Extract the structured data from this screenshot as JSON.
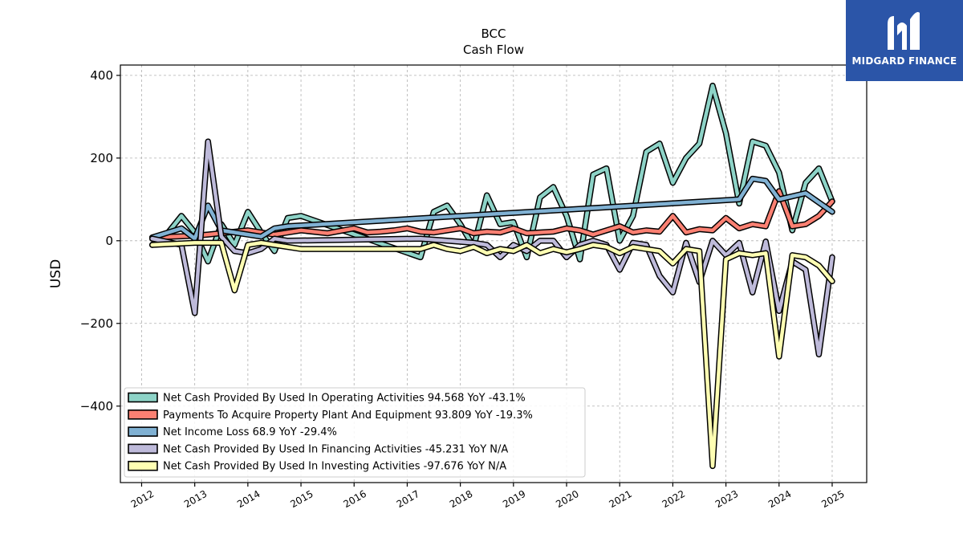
{
  "brand": {
    "name": "MIDGARD FINANCE",
    "color": "#2b55a8"
  },
  "chart_data": {
    "type": "line",
    "title": "BCC",
    "subtitle": "Cash Flow",
    "xlabel": "",
    "ylabel": "USD",
    "xlim": [
      2011.6,
      2025.65
    ],
    "ylim": [
      -585,
      425
    ],
    "yticks": [
      400,
      200,
      0,
      -200,
      -400
    ],
    "ytick_labels": [
      "400",
      "200",
      "0",
      "−200",
      "−400"
    ],
    "xticks": [
      2012,
      2013,
      2014,
      2015,
      2016,
      2017,
      2018,
      2019,
      2020,
      2021,
      2022,
      2023,
      2024,
      2025
    ],
    "xtick_labels": [
      "2012",
      "2013",
      "2014",
      "2015",
      "2016",
      "2017",
      "2018",
      "2019",
      "2020",
      "2021",
      "2022",
      "2023",
      "2024",
      "2025"
    ],
    "grid": true,
    "legend_position": "lower-left",
    "series": [
      {
        "name": "Net Cash Provided By Used In Operating Activities",
        "legend": "Net Cash Provided By Used In Operating Activities  94.568 YoY -43.1%",
        "color": "#8dd3c7",
        "points": [
          [
            2012.2,
            -10
          ],
          [
            2012.5,
            20
          ],
          [
            2012.75,
            60
          ],
          [
            2013.0,
            20
          ],
          [
            2013.25,
            -50
          ],
          [
            2013.5,
            40
          ],
          [
            2013.75,
            -10
          ],
          [
            2014.0,
            70
          ],
          [
            2014.25,
            20
          ],
          [
            2014.5,
            -25
          ],
          [
            2014.75,
            55
          ],
          [
            2015.0,
            60
          ],
          [
            2017.25,
            -40
          ],
          [
            2017.5,
            70
          ],
          [
            2017.75,
            85
          ],
          [
            2018.0,
            40
          ],
          [
            2018.25,
            -15
          ],
          [
            2018.5,
            110
          ],
          [
            2018.75,
            40
          ],
          [
            2019.0,
            45
          ],
          [
            2019.25,
            -40
          ],
          [
            2019.5,
            105
          ],
          [
            2019.75,
            130
          ],
          [
            2020.0,
            60
          ],
          [
            2020.25,
            -45
          ],
          [
            2020.5,
            160
          ],
          [
            2020.75,
            175
          ],
          [
            2021.0,
            0
          ],
          [
            2021.25,
            60
          ],
          [
            2021.5,
            215
          ],
          [
            2021.75,
            235
          ],
          [
            2022.0,
            140
          ],
          [
            2022.25,
            200
          ],
          [
            2022.5,
            235
          ],
          [
            2022.75,
            375
          ],
          [
            2023.0,
            260
          ],
          [
            2023.25,
            90
          ],
          [
            2023.5,
            240
          ],
          [
            2023.75,
            230
          ],
          [
            2024.0,
            165
          ],
          [
            2024.25,
            25
          ],
          [
            2024.5,
            140
          ],
          [
            2024.75,
            175
          ],
          [
            2025.0,
            95
          ]
        ]
      },
      {
        "name": "Payments To Acquire Property Plant And Equipment",
        "legend": "Payments To Acquire Property Plant And Equipment  93.809 YoY -19.3%",
        "color": "#fb8072",
        "points": [
          [
            2012.2,
            8
          ],
          [
            2013.0,
            12
          ],
          [
            2013.25,
            15
          ],
          [
            2014.0,
            25
          ],
          [
            2014.5,
            15
          ],
          [
            2015.0,
            25
          ],
          [
            2015.5,
            18
          ],
          [
            2016.0,
            30
          ],
          [
            2016.25,
            20
          ],
          [
            2016.5,
            22
          ],
          [
            2016.75,
            25
          ],
          [
            2017.0,
            30
          ],
          [
            2017.25,
            22
          ],
          [
            2017.5,
            20
          ],
          [
            2017.75,
            25
          ],
          [
            2018.0,
            30
          ],
          [
            2018.25,
            18
          ],
          [
            2018.5,
            22
          ],
          [
            2018.75,
            20
          ],
          [
            2019.0,
            30
          ],
          [
            2019.25,
            18
          ],
          [
            2019.5,
            20
          ],
          [
            2019.75,
            22
          ],
          [
            2020.0,
            30
          ],
          [
            2020.25,
            25
          ],
          [
            2020.5,
            15
          ],
          [
            2020.75,
            25
          ],
          [
            2021.0,
            35
          ],
          [
            2021.25,
            20
          ],
          [
            2021.5,
            25
          ],
          [
            2021.75,
            22
          ],
          [
            2022.0,
            60
          ],
          [
            2022.25,
            20
          ],
          [
            2022.5,
            28
          ],
          [
            2022.75,
            25
          ],
          [
            2023.0,
            55
          ],
          [
            2023.25,
            30
          ],
          [
            2023.5,
            40
          ],
          [
            2023.75,
            35
          ],
          [
            2024.0,
            120
          ],
          [
            2024.25,
            35
          ],
          [
            2024.5,
            40
          ],
          [
            2024.75,
            60
          ],
          [
            2025.0,
            95
          ]
        ]
      },
      {
        "name": "Net Income Loss",
        "legend": "Net Income Loss  68.9 YoY -29.4%",
        "color": "#80b1d3",
        "points": [
          [
            2012.2,
            8
          ],
          [
            2012.75,
            30
          ],
          [
            2013.0,
            5
          ],
          [
            2013.25,
            85
          ],
          [
            2013.5,
            25
          ],
          [
            2013.75,
            20
          ],
          [
            2014.0,
            15
          ],
          [
            2014.25,
            10
          ],
          [
            2014.5,
            30
          ],
          [
            2014.75,
            35
          ],
          [
            2023.25,
            100
          ],
          [
            2023.5,
            150
          ],
          [
            2023.75,
            145
          ],
          [
            2024.0,
            100
          ],
          [
            2024.5,
            115
          ],
          [
            2025.0,
            70
          ]
        ]
      },
      {
        "name": "Net Cash Provided By Used In Financing Activities",
        "legend": "Net Cash Provided By Used In Financing Activities  -45.231 YoY N/A",
        "color": "#bebada",
        "points": [
          [
            2012.2,
            5
          ],
          [
            2012.75,
            -10
          ],
          [
            2013.0,
            -175
          ],
          [
            2013.25,
            240
          ],
          [
            2013.5,
            10
          ],
          [
            2013.75,
            -25
          ],
          [
            2014.0,
            -30
          ],
          [
            2014.25,
            -20
          ],
          [
            2014.5,
            5
          ],
          [
            2014.75,
            0
          ],
          [
            2017.25,
            5
          ],
          [
            2017.75,
            0
          ],
          [
            2018.25,
            -5
          ],
          [
            2018.5,
            -10
          ],
          [
            2018.75,
            -40
          ],
          [
            2019.0,
            -10
          ],
          [
            2019.25,
            -25
          ],
          [
            2019.5,
            0
          ],
          [
            2019.75,
            0
          ],
          [
            2020.0,
            -40
          ],
          [
            2020.25,
            -10
          ],
          [
            2020.5,
            0
          ],
          [
            2020.75,
            -10
          ],
          [
            2021.0,
            -70
          ],
          [
            2021.25,
            -5
          ],
          [
            2021.5,
            -10
          ],
          [
            2021.75,
            -85
          ],
          [
            2022.0,
            -125
          ],
          [
            2022.25,
            -5
          ],
          [
            2022.5,
            -100
          ],
          [
            2022.75,
            0
          ],
          [
            2023.0,
            -35
          ],
          [
            2023.25,
            -5
          ],
          [
            2023.5,
            -125
          ],
          [
            2023.75,
            -2
          ],
          [
            2024.0,
            -170
          ],
          [
            2024.25,
            -50
          ],
          [
            2024.5,
            -70
          ],
          [
            2024.75,
            -275
          ],
          [
            2025.0,
            -40
          ]
        ]
      },
      {
        "name": "Net Cash Provided By Used In Investing Activities",
        "legend": "Net Cash Provided By Used In Investing Activities  -97.676 YoY N/A",
        "color": "#ffffb3",
        "points": [
          [
            2012.2,
            -10
          ],
          [
            2013.0,
            -5
          ],
          [
            2013.5,
            -5
          ],
          [
            2013.75,
            -120
          ],
          [
            2014.0,
            -10
          ],
          [
            2014.25,
            -5
          ],
          [
            2014.5,
            -10
          ],
          [
            2015.0,
            -20
          ],
          [
            2016.25,
            -20
          ],
          [
            2017.25,
            -20
          ],
          [
            2017.5,
            -10
          ],
          [
            2017.75,
            -20
          ],
          [
            2018.0,
            -25
          ],
          [
            2018.25,
            -15
          ],
          [
            2018.5,
            -30
          ],
          [
            2018.75,
            -20
          ],
          [
            2019.0,
            -25
          ],
          [
            2019.25,
            -10
          ],
          [
            2019.5,
            -30
          ],
          [
            2019.75,
            -20
          ],
          [
            2020.0,
            -28
          ],
          [
            2020.25,
            -20
          ],
          [
            2020.5,
            -10
          ],
          [
            2020.75,
            -15
          ],
          [
            2021.0,
            -30
          ],
          [
            2021.25,
            -15
          ],
          [
            2021.5,
            -20
          ],
          [
            2021.75,
            -25
          ],
          [
            2022.0,
            -55
          ],
          [
            2022.25,
            -20
          ],
          [
            2022.5,
            -25
          ],
          [
            2022.75,
            -545
          ],
          [
            2023.0,
            -45
          ],
          [
            2023.25,
            -30
          ],
          [
            2023.5,
            -35
          ],
          [
            2023.75,
            -30
          ],
          [
            2024.0,
            -280
          ],
          [
            2024.25,
            -35
          ],
          [
            2024.5,
            -40
          ],
          [
            2024.75,
            -60
          ],
          [
            2025.0,
            -98
          ]
        ]
      }
    ]
  }
}
